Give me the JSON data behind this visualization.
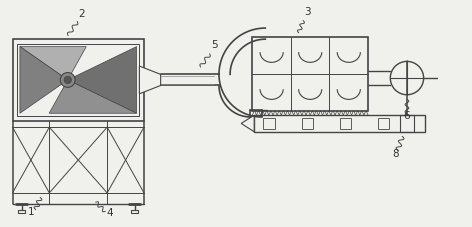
{
  "bg_color": "#f0f0ec",
  "line_color": "#444444",
  "figsize": [
    4.72,
    2.27
  ],
  "dpi": 100
}
